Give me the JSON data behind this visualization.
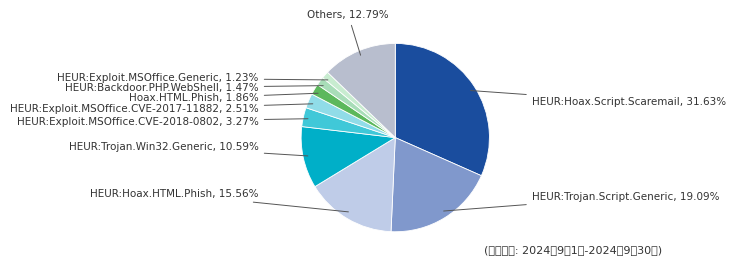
{
  "labels": [
    "HEUR:Hoax.Script.Scaremail",
    "HEUR:Trojan.Script.Generic",
    "HEUR:Hoax.HTML.Phish",
    "HEUR:Trojan.Win32.Generic",
    "HEUR:Exploit.MSOffice.CVE-2018-0802",
    "HEUR:Exploit.MSOffice.CVE-2017-11882",
    "Hoax.HTML.Phish",
    "HEUR:Backdoor.PHP.WebShell",
    "HEUR:Exploit.MSOffice.Generic",
    "Others"
  ],
  "values": [
    31.63,
    19.09,
    15.56,
    10.59,
    3.27,
    2.51,
    1.86,
    1.47,
    1.23,
    12.79
  ],
  "colors": [
    "#1a4d9e",
    "#8098cc",
    "#bfcce8",
    "#00afc8",
    "#40c8d8",
    "#90dce8",
    "#5cb85c",
    "#a8ddb8",
    "#c8ecd0",
    "#b8bece"
  ],
  "label_texts": [
    "HEUR:Hoax.Script.Scaremail, 31.63%",
    "HEUR:Trojan.Script.Generic, 19.09%",
    "HEUR:Hoax.HTML.Phish, 15.56%",
    "HEUR:Trojan.Win32.Generic, 10.59%",
    "HEUR:Exploit.MSOffice.CVE-2018-0802, 3.27%",
    "HEUR:Exploit.MSOffice.CVE-2017-11882, 2.51%",
    "Hoax.HTML.Phish, 1.86%",
    "HEUR:Backdoor.PHP.WebShell, 1.47%",
    "HEUR:Exploit.MSOffice.Generic, 1.23%",
    "Others, 12.79%"
  ],
  "footnote": "(集計期間: 2024年9月1日-2024年9月30日)",
  "bg_color": "#ffffff",
  "font_size": 7.5,
  "footnote_fontsize": 8,
  "line_color": "#555555",
  "text_color": "#333333"
}
